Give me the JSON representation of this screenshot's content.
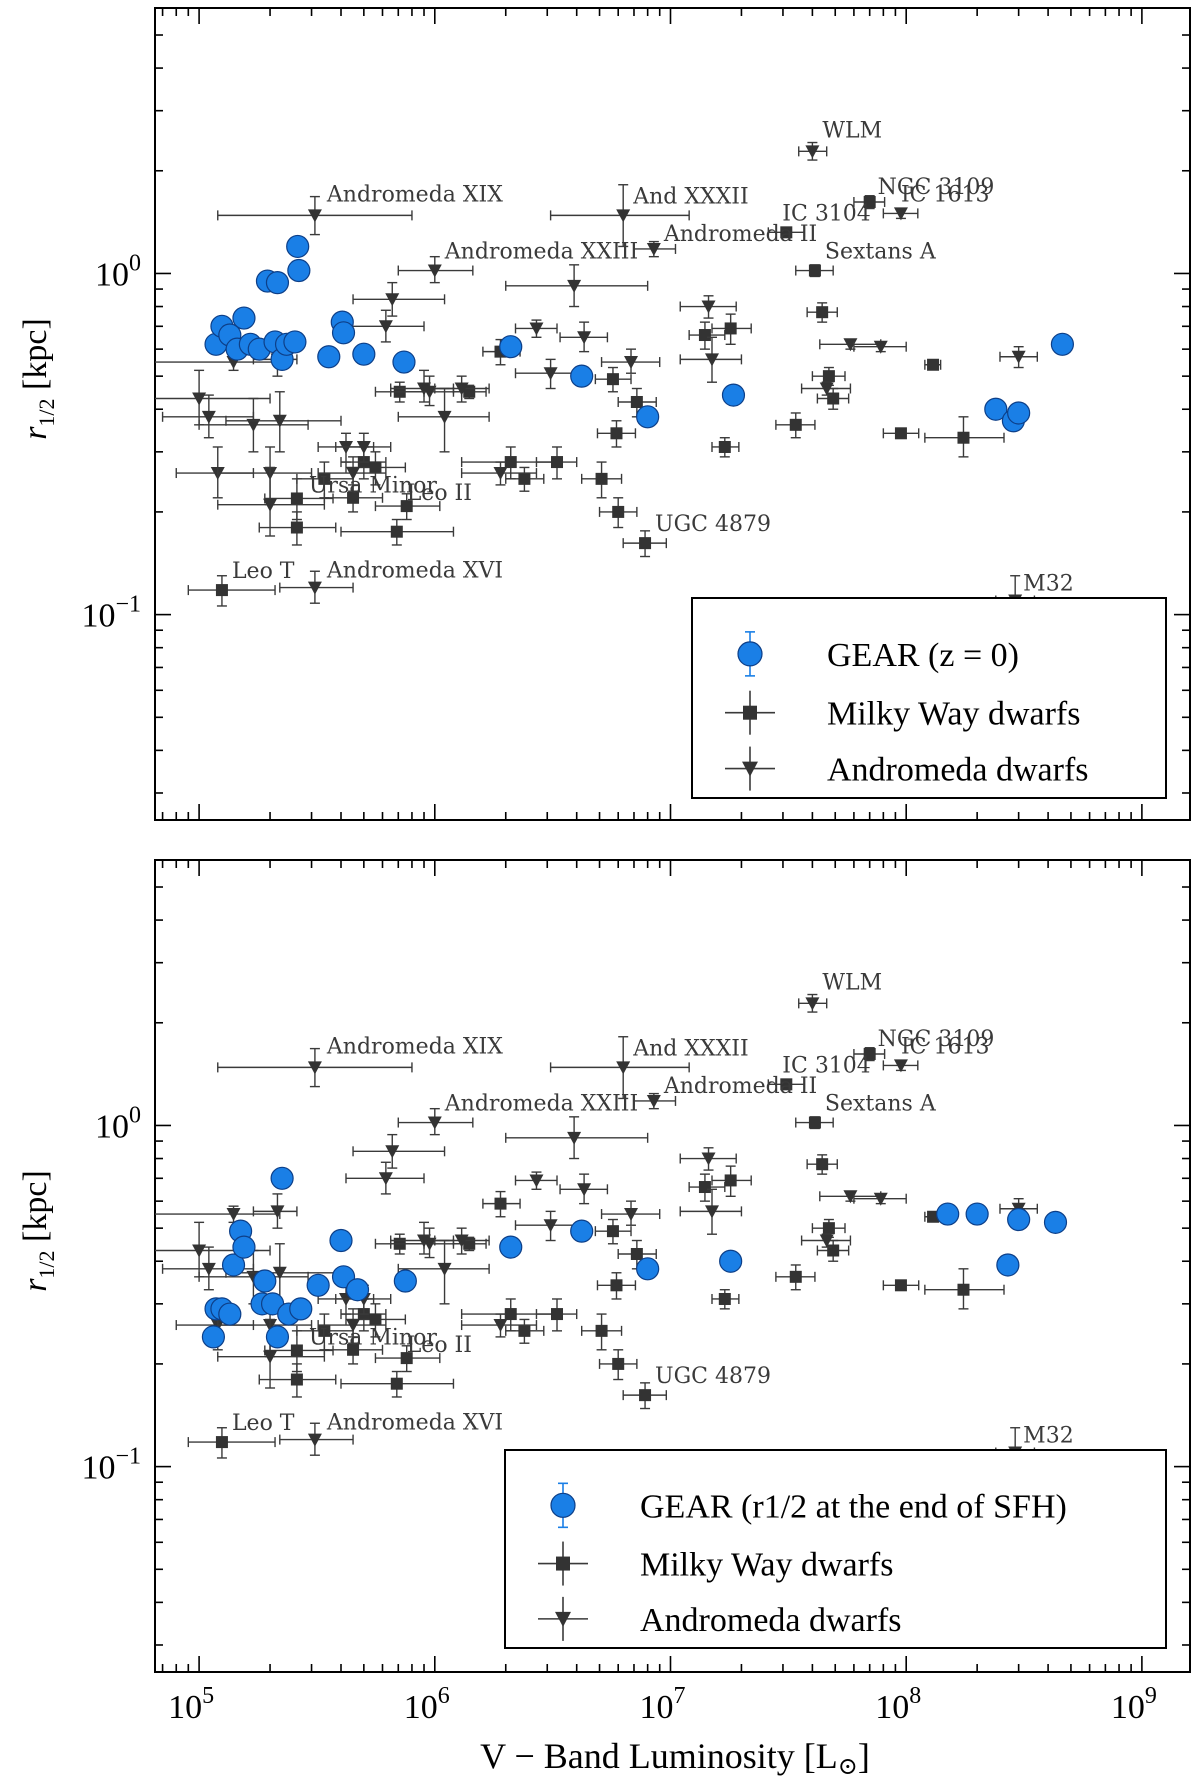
{
  "chart_data": [
    {
      "type": "scatter",
      "panel": "top",
      "xscale": "log",
      "yscale": "log",
      "xlim": [
        65000,
        1600000000
      ],
      "ylim": [
        0.025,
        6.0
      ],
      "ylabel": "r1/2 [kpc]",
      "legend_position": "bottom-right",
      "gear_legend": "GEAR (z = 0)",
      "gear_points": [
        [
          118000,
          0.62
        ],
        [
          125000,
          0.7
        ],
        [
          135000,
          0.66
        ],
        [
          145000,
          0.6
        ],
        [
          155000,
          0.74
        ],
        [
          165000,
          0.62
        ],
        [
          180000,
          0.6
        ],
        [
          195000,
          0.95
        ],
        [
          210000,
          0.63
        ],
        [
          215000,
          0.94
        ],
        [
          225000,
          0.56
        ],
        [
          235000,
          0.62
        ],
        [
          255000,
          0.63
        ],
        [
          262000,
          1.2
        ],
        [
          265000,
          1.02
        ],
        [
          355000,
          0.57
        ],
        [
          405000,
          0.72
        ],
        [
          410000,
          0.67
        ],
        [
          500000,
          0.58
        ],
        [
          740000,
          0.55
        ],
        [
          2100000,
          0.61
        ],
        [
          4200000,
          0.5
        ],
        [
          8000000,
          0.38
        ],
        [
          18500000,
          0.44
        ],
        [
          240000000,
          0.4
        ],
        [
          285000000,
          0.37
        ],
        [
          300000000,
          0.39
        ],
        [
          460000000,
          0.62
        ]
      ]
    },
    {
      "type": "scatter",
      "panel": "bottom",
      "xscale": "log",
      "yscale": "log",
      "xlim": [
        65000,
        1600000000
      ],
      "ylim": [
        0.025,
        6.0
      ],
      "xlabel": "V − Band Luminosity [L⊙]",
      "ylabel": "r1/2 [kpc]",
      "legend_position": "bottom-right",
      "gear_legend": "GEAR (r1/2 at the end of SFH)",
      "gear_points": [
        [
          115000,
          0.24
        ],
        [
          118000,
          0.29
        ],
        [
          125000,
          0.29
        ],
        [
          135000,
          0.28
        ],
        [
          140000,
          0.39
        ],
        [
          150000,
          0.49
        ],
        [
          155000,
          0.44
        ],
        [
          185000,
          0.3
        ],
        [
          190000,
          0.35
        ],
        [
          205000,
          0.3
        ],
        [
          215000,
          0.24
        ],
        [
          225000,
          0.7
        ],
        [
          240000,
          0.28
        ],
        [
          270000,
          0.29
        ],
        [
          320000,
          0.34
        ],
        [
          400000,
          0.46
        ],
        [
          410000,
          0.36
        ],
        [
          470000,
          0.33
        ],
        [
          750000,
          0.35
        ],
        [
          2100000,
          0.44
        ],
        [
          4200000,
          0.49
        ],
        [
          8000000,
          0.38
        ],
        [
          18000000,
          0.4
        ],
        [
          150000000,
          0.55
        ],
        [
          200000000,
          0.55
        ],
        [
          300000000,
          0.53
        ],
        [
          430000000,
          0.52
        ],
        [
          270000000,
          0.39
        ]
      ]
    }
  ],
  "legend": {
    "milky_way": "Milky Way dwarfs",
    "andromeda": "Andromeda dwarfs"
  },
  "x_tick_labels": [
    "10^5",
    "10^6",
    "10^7",
    "10^8",
    "10^9"
  ],
  "y_tick_labels": [
    "10^-1",
    "10^0"
  ],
  "milky_way_dwarfs": [
    {
      "L": 125000,
      "r": 0.118,
      "xlo": 90000,
      "xhi": 210000,
      "ylo": 0.106,
      "yhi": 0.13,
      "label": "Leo T"
    },
    {
      "L": 260000,
      "r": 0.219,
      "xlo": 190000,
      "xhi": 370000,
      "ylo": 0.19,
      "yhi": 0.25,
      "label": "Ursa Minor"
    },
    {
      "L": 760000,
      "r": 0.208,
      "xlo": 560000,
      "xhi": 1050000,
      "ylo": 0.19,
      "yhi": 0.226,
      "label": "Leo II"
    },
    {
      "L": 7800000,
      "r": 0.162,
      "xlo": 6300000,
      "xhi": 9600000,
      "ylo": 0.148,
      "yhi": 0.176,
      "label": "UGC 4879"
    },
    {
      "L": 31000000,
      "r": 1.32,
      "xlo": 26000000,
      "xhi": 37000000,
      "ylo": 1.28,
      "yhi": 1.36,
      "label": "IC 3104"
    },
    {
      "L": 41000000,
      "r": 1.02,
      "xlo": 34000000,
      "xhi": 49000000,
      "ylo": 0.98,
      "yhi": 1.06,
      "label": "Sextans A"
    },
    {
      "L": 70000000,
      "r": 1.62,
      "xlo": 60000000,
      "xhi": 81000000,
      "ylo": 1.55,
      "yhi": 1.69,
      "label": "NGC 3109"
    },
    {
      "L": 260000,
      "r": 0.18,
      "xlo": 180000,
      "xhi": 380000,
      "ylo": 0.16,
      "yhi": 0.2
    },
    {
      "L": 340000,
      "r": 0.25,
      "xlo": 260000,
      "xhi": 450000,
      "ylo": 0.22,
      "yhi": 0.28
    },
    {
      "L": 450000,
      "r": 0.22,
      "xlo": 340000,
      "xhi": 600000,
      "ylo": 0.2,
      "yhi": 0.24
    },
    {
      "L": 500000,
      "r": 0.28,
      "xlo": 400000,
      "xhi": 620000,
      "ylo": 0.25,
      "yhi": 0.31
    },
    {
      "L": 560000,
      "r": 0.27,
      "xlo": 420000,
      "xhi": 750000,
      "ylo": 0.24,
      "yhi": 0.3
    },
    {
      "L": 690000,
      "r": 0.175,
      "xlo": 400000,
      "xhi": 1200000,
      "ylo": 0.16,
      "yhi": 0.19
    },
    {
      "L": 710000,
      "r": 0.45,
      "xlo": 560000,
      "xhi": 900000,
      "ylo": 0.42,
      "yhi": 0.48
    },
    {
      "L": 1400000,
      "r": 0.45,
      "xlo": 1200000,
      "xhi": 1650000,
      "ylo": 0.43,
      "yhi": 0.47
    },
    {
      "L": 1900000,
      "r": 0.59,
      "xlo": 1600000,
      "xhi": 2300000,
      "ylo": 0.54,
      "yhi": 0.64
    },
    {
      "L": 2100000,
      "r": 0.28,
      "xlo": 1300000,
      "xhi": 3200000,
      "ylo": 0.25,
      "yhi": 0.31
    },
    {
      "L": 2400000,
      "r": 0.25,
      "xlo": 2000000,
      "xhi": 2900000,
      "ylo": 0.23,
      "yhi": 0.27
    },
    {
      "L": 3300000,
      "r": 0.28,
      "xlo": 2700000,
      "xhi": 4000000,
      "ylo": 0.25,
      "yhi": 0.31
    },
    {
      "L": 5100000,
      "r": 0.25,
      "xlo": 4200000,
      "xhi": 6200000,
      "ylo": 0.22,
      "yhi": 0.28
    },
    {
      "L": 5900000,
      "r": 0.34,
      "xlo": 4900000,
      "xhi": 7100000,
      "ylo": 0.31,
      "yhi": 0.37
    },
    {
      "L": 6000000,
      "r": 0.2,
      "xlo": 5000000,
      "xhi": 7200000,
      "ylo": 0.18,
      "yhi": 0.22
    },
    {
      "L": 7200000,
      "r": 0.42,
      "xlo": 6000000,
      "xhi": 8700000,
      "ylo": 0.38,
      "yhi": 0.46
    },
    {
      "L": 5700000,
      "r": 0.49,
      "xlo": 4800000,
      "xhi": 6800000,
      "ylo": 0.45,
      "yhi": 0.53
    },
    {
      "L": 14000000,
      "r": 0.66,
      "xlo": 12000000,
      "xhi": 17000000,
      "ylo": 0.6,
      "yhi": 0.72
    },
    {
      "L": 17000000,
      "r": 0.31,
      "xlo": 15000000,
      "xhi": 19500000,
      "ylo": 0.29,
      "yhi": 0.33
    },
    {
      "L": 18000000,
      "r": 0.69,
      "xlo": 15000000,
      "xhi": 22000000,
      "ylo": 0.62,
      "yhi": 0.76
    },
    {
      "L": 34000000,
      "r": 0.36,
      "xlo": 28000000,
      "xhi": 41000000,
      "ylo": 0.33,
      "yhi": 0.39
    },
    {
      "L": 44000000,
      "r": 0.77,
      "xlo": 38000000,
      "xhi": 51000000,
      "ylo": 0.72,
      "yhi": 0.82
    },
    {
      "L": 47000000,
      "r": 0.5,
      "xlo": 40000000,
      "xhi": 55000000,
      "ylo": 0.47,
      "yhi": 0.53
    },
    {
      "L": 49000000,
      "r": 0.43,
      "xlo": 42000000,
      "xhi": 57000000,
      "ylo": 0.4,
      "yhi": 0.46
    },
    {
      "L": 95000000,
      "r": 0.34,
      "xlo": 80000000,
      "xhi": 113000000,
      "ylo": 0.33,
      "yhi": 0.35
    },
    {
      "L": 130000000,
      "r": 0.54,
      "xlo": 120000000,
      "xhi": 140000000,
      "ylo": 0.53,
      "yhi": 0.55
    },
    {
      "L": 175000000,
      "r": 0.33,
      "xlo": 120000000,
      "xhi": 260000000,
      "ylo": 0.29,
      "yhi": 0.38
    }
  ],
  "andromeda_dwarfs": [
    {
      "L": 310000,
      "r": 1.48,
      "xlo": 120000,
      "xhi": 800000,
      "ylo": 1.3,
      "yhi": 1.68,
      "label": "Andromeda XIX"
    },
    {
      "L": 310000,
      "r": 0.12,
      "xlo": 220000,
      "xhi": 450000,
      "ylo": 0.108,
      "yhi": 0.134,
      "label": "Andromeda XVI"
    },
    {
      "L": 1000000,
      "r": 1.02,
      "xlo": 700000,
      "xhi": 1450000,
      "ylo": 0.94,
      "yhi": 1.12,
      "label": "Andromeda XXIII"
    },
    {
      "L": 6300000,
      "r": 1.48,
      "xlo": 3100000,
      "xhi": 12000000,
      "ylo": 1.2,
      "yhi": 1.82,
      "label": "And XXXII"
    },
    {
      "L": 8500000,
      "r": 1.18,
      "xlo": 7000000,
      "xhi": 10500000,
      "ylo": 1.12,
      "yhi": 1.24,
      "label": "Andromeda II"
    },
    {
      "L": 40000000,
      "r": 2.28,
      "xlo": 35000000,
      "xhi": 46000000,
      "ylo": 2.15,
      "yhi": 2.42,
      "label": "WLM"
    },
    {
      "L": 95000000,
      "r": 1.5,
      "xlo": 80000000,
      "xhi": 112000000,
      "ylo": 1.45,
      "yhi": 1.55,
      "label": "IC 1613"
    },
    {
      "L": 290000000,
      "r": 0.11,
      "xlo": 240000000,
      "xhi": 350000000,
      "ylo": 0.1,
      "yhi": 0.13,
      "label": "M32"
    },
    {
      "L": 100000,
      "r": 0.43,
      "xlo": 40000,
      "xhi": 200000,
      "ylo": 0.36,
      "yhi": 0.52
    },
    {
      "L": 110000,
      "r": 0.38,
      "xlo": 70000,
      "xhi": 170000,
      "ylo": 0.33,
      "yhi": 0.44
    },
    {
      "L": 120000,
      "r": 0.26,
      "xlo": 80000,
      "xhi": 170000,
      "ylo": 0.22,
      "yhi": 0.31
    },
    {
      "L": 140000,
      "r": 0.55,
      "xlo": 60000,
      "xhi": 220000,
      "ylo": 0.52,
      "yhi": 0.58
    },
    {
      "L": 170000,
      "r": 0.36,
      "xlo": 100000,
      "xhi": 290000,
      "ylo": 0.3,
      "yhi": 0.43
    },
    {
      "L": 200000,
      "r": 0.26,
      "xlo": 120000,
      "xhi": 300000,
      "ylo": 0.21,
      "yhi": 0.31
    },
    {
      "L": 200000,
      "r": 0.21,
      "xlo": 120000,
      "xhi": 340000,
      "ylo": 0.17,
      "yhi": 0.27
    },
    {
      "L": 215000,
      "r": 0.56,
      "xlo": 170000,
      "xhi": 260000,
      "ylo": 0.5,
      "yhi": 0.63
    },
    {
      "L": 220000,
      "r": 0.37,
      "xlo": 130000,
      "xhi": 400000,
      "ylo": 0.3,
      "yhi": 0.45
    },
    {
      "L": 420000,
      "r": 0.31,
      "xlo": 320000,
      "xhi": 550000,
      "ylo": 0.28,
      "yhi": 0.34
    },
    {
      "L": 450000,
      "r": 0.26,
      "xlo": 320000,
      "xhi": 620000,
      "ylo": 0.23,
      "yhi": 0.29
    },
    {
      "L": 500000,
      "r": 0.31,
      "xlo": 380000,
      "xhi": 650000,
      "ylo": 0.28,
      "yhi": 0.34
    },
    {
      "L": 620000,
      "r": 0.7,
      "xlo": 420000,
      "xhi": 900000,
      "ylo": 0.63,
      "yhi": 0.78
    },
    {
      "L": 660000,
      "r": 0.84,
      "xlo": 450000,
      "xhi": 1100000,
      "ylo": 0.75,
      "yhi": 0.94
    },
    {
      "L": 900000,
      "r": 0.46,
      "xlo": 650000,
      "xhi": 1200000,
      "ylo": 0.42,
      "yhi": 0.52
    },
    {
      "L": 950000,
      "r": 0.45,
      "xlo": 650000,
      "xhi": 1300000,
      "ylo": 0.41,
      "yhi": 0.5
    },
    {
      "L": 1100000,
      "r": 0.38,
      "xlo": 700000,
      "xhi": 1700000,
      "ylo": 0.3,
      "yhi": 0.46
    },
    {
      "L": 1300000,
      "r": 0.46,
      "xlo": 1000000,
      "xhi": 1700000,
      "ylo": 0.42,
      "yhi": 0.5
    },
    {
      "L": 1900000,
      "r": 0.26,
      "xlo": 1300000,
      "xhi": 2700000,
      "ylo": 0.24,
      "yhi": 0.28
    },
    {
      "L": 2700000,
      "r": 0.69,
      "xlo": 2200000,
      "xhi": 3300000,
      "ylo": 0.65,
      "yhi": 0.73
    },
    {
      "L": 3100000,
      "r": 0.51,
      "xlo": 2200000,
      "xhi": 4300000,
      "ylo": 0.46,
      "yhi": 0.56
    },
    {
      "L": 3900000,
      "r": 0.92,
      "xlo": 2000000,
      "xhi": 8000000,
      "ylo": 0.8,
      "yhi": 1.06
    },
    {
      "L": 4300000,
      "r": 0.65,
      "xlo": 3400000,
      "xhi": 5400000,
      "ylo": 0.59,
      "yhi": 0.72
    },
    {
      "L": 6800000,
      "r": 0.55,
      "xlo": 5100000,
      "xhi": 9000000,
      "ylo": 0.51,
      "yhi": 0.6
    },
    {
      "L": 14500000,
      "r": 0.8,
      "xlo": 11000000,
      "xhi": 19000000,
      "ylo": 0.74,
      "yhi": 0.86
    },
    {
      "L": 15000000,
      "r": 0.56,
      "xlo": 11000000,
      "xhi": 20000000,
      "ylo": 0.48,
      "yhi": 0.65
    },
    {
      "L": 46000000,
      "r": 0.46,
      "xlo": 36000000,
      "xhi": 58000000,
      "ylo": 0.44,
      "yhi": 0.48
    },
    {
      "L": 58000000,
      "r": 0.62,
      "xlo": 43000000,
      "xhi": 78000000,
      "ylo": 0.6,
      "yhi": 0.64
    },
    {
      "L": 78000000,
      "r": 0.61,
      "xlo": 60000000,
      "xhi": 100000000,
      "ylo": 0.59,
      "yhi": 0.63
    },
    {
      "L": 300000000,
      "r": 0.57,
      "xlo": 250000000,
      "xhi": 360000000,
      "ylo": 0.53,
      "yhi": 0.61
    }
  ],
  "colors": {
    "gear_fill": "#1a7fe6",
    "gear_edge": "#0d3f88",
    "obs_marker": "#333333",
    "errbar": "#3a3a3a"
  }
}
